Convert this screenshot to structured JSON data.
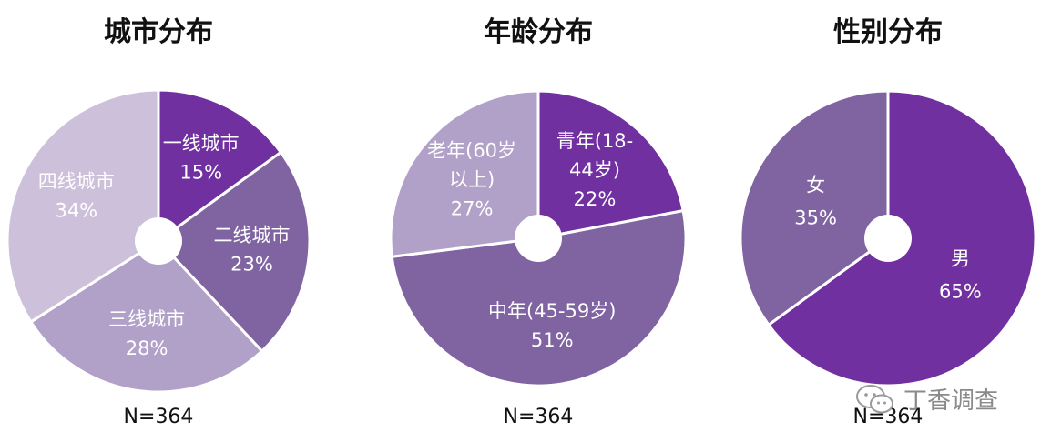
{
  "colors": {
    "slice_palette": [
      "#7030a0",
      "#8064a2",
      "#b1a0c7",
      "#ccc0da"
    ],
    "slice_border": "#ffffff",
    "label_text": "#ffffff"
  },
  "chart_data": [
    {
      "type": "pie",
      "title": "城市分布",
      "footnote": "N=364",
      "slices": [
        {
          "name": "一线城市",
          "value": 15,
          "label_lines": [
            "一线城市",
            "15%"
          ],
          "color": "#7030a0"
        },
        {
          "name": "二线城市",
          "value": 23,
          "label_lines": [
            "二线城市",
            "23%"
          ],
          "color": "#8064a2"
        },
        {
          "name": "三线城市",
          "value": 28,
          "label_lines": [
            "三线城市",
            "28%"
          ],
          "color": "#b1a0c7"
        },
        {
          "name": "四线城市",
          "value": 34,
          "label_lines": [
            "四线城市",
            "34%"
          ],
          "color": "#ccc0da"
        }
      ]
    },
    {
      "type": "pie",
      "title": "年龄分布",
      "footnote": "N=364",
      "slices": [
        {
          "name": "青年(18-44岁)",
          "value": 22,
          "label_lines": [
            "青年(18-",
            "44岁)",
            "22%"
          ],
          "color": "#7030a0"
        },
        {
          "name": "中年(45-59岁)",
          "value": 51,
          "label_lines": [
            "中年(45-59岁)",
            "51%"
          ],
          "color": "#8064a2"
        },
        {
          "name": "老年(60岁以上)",
          "value": 27,
          "label_lines": [
            "老年(60岁",
            "以上)",
            "27%"
          ],
          "color": "#b1a0c7"
        }
      ]
    },
    {
      "type": "pie",
      "title": "性别分布",
      "footnote": "N=364",
      "slices": [
        {
          "name": "男",
          "value": 65,
          "label_lines": [
            "男",
            "65%"
          ],
          "color": "#7030a0"
        },
        {
          "name": "女",
          "value": 35,
          "label_lines": [
            "女",
            "35%"
          ],
          "color": "#8064a2"
        }
      ]
    }
  ],
  "watermark": {
    "text": "丁香调查",
    "icon": "wechat-icon"
  }
}
